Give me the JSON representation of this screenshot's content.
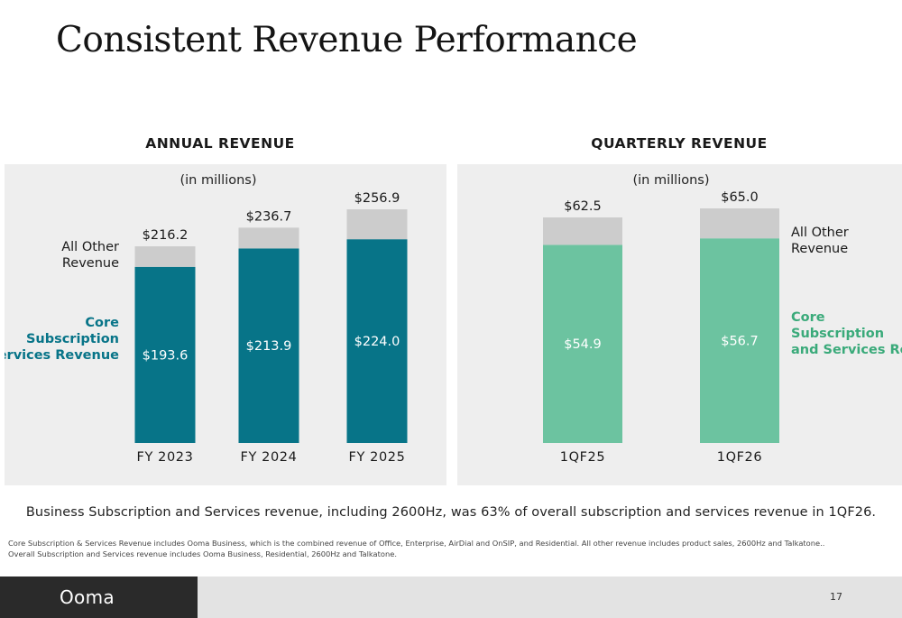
{
  "title": "Consistent Revenue Performance",
  "chart_data": [
    {
      "type": "bar",
      "stacked": true,
      "title": "ANNUAL REVENUE",
      "subtitle": "(in millions)",
      "categories": [
        "FY 2023",
        "FY 2024",
        "FY 2025"
      ],
      "series": [
        {
          "name": "Core Subscription and Services Revenue",
          "values": [
            193.6,
            213.9,
            224.0
          ],
          "labels": [
            "$193.6",
            "$213.9",
            "$224.0"
          ],
          "color": "#077488"
        },
        {
          "name": "All Other Revenue",
          "values": [
            22.6,
            22.8,
            32.9
          ],
          "color": "#cccccc"
        }
      ],
      "totals": [
        216.2,
        236.7,
        256.9
      ],
      "total_labels": [
        "$216.2",
        "$236.7",
        "$256.9"
      ],
      "legend": {
        "other": "All Other Revenue",
        "core": "Core Subscription and Services Revenue",
        "core_color": "#077488",
        "placement": "left"
      },
      "ylim": [
        0,
        280
      ]
    },
    {
      "type": "bar",
      "stacked": true,
      "title": "QUARTERLY REVENUE",
      "subtitle": "(in millions)",
      "categories": [
        "1QF25",
        "1QF26"
      ],
      "series": [
        {
          "name": "Core Subscription and Services Revenue",
          "values": [
            54.9,
            56.7
          ],
          "labels": [
            "$54.9",
            "$56.7"
          ],
          "color": "#6cc3a0"
        },
        {
          "name": "All Other Revenue",
          "values": [
            7.6,
            8.3
          ],
          "color": "#cccccc"
        }
      ],
      "totals": [
        62.5,
        65.0
      ],
      "total_labels": [
        "$62.5",
        "$65.0"
      ],
      "legend": {
        "other": "All Other Revenue",
        "core": "Core Subscription and Services Revenue",
        "core_color": "#3aaa7a",
        "placement": "right"
      },
      "ylim": [
        0,
        70.5
      ]
    }
  ],
  "footnote_main": "Business Subscription and Services revenue, including 2600Hz, was 63% of overall subscription and services revenue in 1QF26.",
  "footnote_small": [
    "Core Subscription & Services Revenue includes Ooma Business, which is the combined revenue of Office, Enterprise, AirDial and OnSIP, and Residential.  All other revenue includes product sales, 2600Hz and Talkatone..",
    "Overall Subscription and Services revenue includes Ooma Business, Residential, 2600Hz and Talkatone."
  ],
  "footer": {
    "brand": "Ooma",
    "page": "17"
  }
}
